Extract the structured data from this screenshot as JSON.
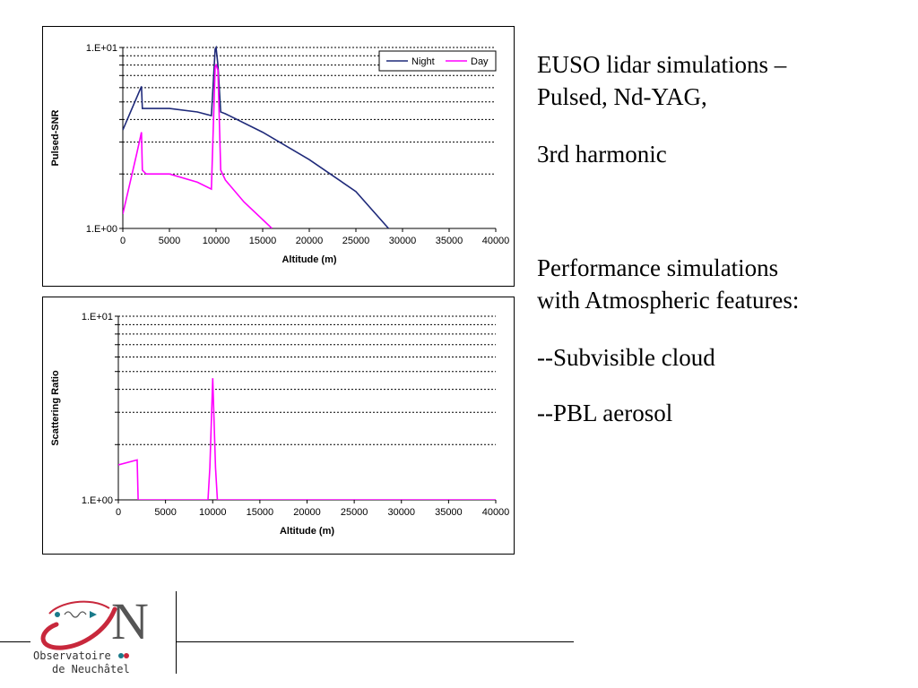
{
  "text": {
    "title_line1": "EUSO lidar simulations –",
    "title_line2": "Pulsed, Nd-YAG,",
    "harmonic": "3rd harmonic",
    "perf_line1": "Performance simulations",
    "perf_line2": "with Atmospheric features:",
    "feature1": "--Subvisible cloud",
    "feature2": "--PBL aerosol"
  },
  "logo": {
    "letter": "N",
    "line1": "Observatoire",
    "line2": "de Neuchâtel"
  },
  "colors": {
    "night": "#1f2a7a",
    "day": "#ff00ff",
    "logo_red": "#c8283c",
    "logo_teal": "#1a7a8a"
  },
  "chart_data": [
    {
      "type": "line",
      "title": "",
      "xlabel": "Altitude (m)",
      "ylabel": "Pulsed-SNR",
      "xlim": [
        0,
        40000
      ],
      "ylim": [
        1,
        10
      ],
      "yscale": "log",
      "grid": "dotted horizontal",
      "legend": "top-right",
      "xticks": [
        "0",
        "5000",
        "10000",
        "15000",
        "20000",
        "25000",
        "30000",
        "35000",
        "40000"
      ],
      "yticks": [
        "1.E+00",
        "1.E+01"
      ],
      "series": [
        {
          "name": "Night",
          "color": "#1f2a7a",
          "x": [
            0,
            2000,
            2100,
            5000,
            8000,
            9500,
            9900,
            10000,
            10200,
            10500,
            11000,
            15000,
            20000,
            25000,
            28500
          ],
          "y": [
            3.5,
            6.1,
            4.6,
            4.6,
            4.4,
            4.2,
            9.8,
            10.0,
            8.0,
            4.4,
            4.3,
            3.4,
            2.4,
            1.6,
            1.0
          ]
        },
        {
          "name": "Day",
          "color": "#ff00ff",
          "x": [
            0,
            1500,
            2000,
            2100,
            2500,
            5000,
            8000,
            9500,
            9900,
            10000,
            10200,
            10500,
            11000,
            13000,
            16000
          ],
          "y": [
            1.2,
            2.6,
            3.4,
            2.1,
            2.0,
            2.0,
            1.8,
            1.65,
            7.8,
            8.0,
            7.5,
            2.1,
            1.85,
            1.4,
            1.0
          ]
        }
      ]
    },
    {
      "type": "line",
      "title": "",
      "xlabel": "Altitude (m)",
      "ylabel": "Scattering Ratio",
      "xlim": [
        0,
        40000
      ],
      "ylim": [
        1,
        10
      ],
      "yscale": "log",
      "grid": "dotted horizontal",
      "xticks": [
        "0",
        "5000",
        "10000",
        "15000",
        "20000",
        "25000",
        "30000",
        "35000",
        "40000"
      ],
      "yticks": [
        "1.E+00",
        "1.E+01"
      ],
      "series": [
        {
          "name": "",
          "color": "#ff00ff",
          "x": [
            0,
            2000,
            2100,
            9500,
            9700,
            10000,
            10300,
            10500,
            40000
          ],
          "y": [
            1.55,
            1.65,
            1.0,
            1.0,
            1.5,
            4.6,
            1.5,
            1.0,
            1.0
          ]
        }
      ]
    }
  ]
}
